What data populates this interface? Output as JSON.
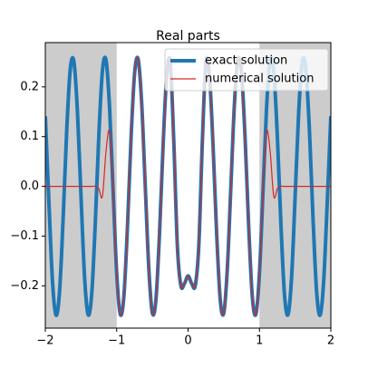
{
  "chart_data": {
    "type": "line",
    "title": "Real parts",
    "x": [
      -2,
      -1.95,
      -1.9,
      -1.85,
      -1.8,
      -1.75,
      -1.7,
      -1.65,
      -1.6,
      -1.55,
      -1.5,
      -1.45,
      -1.4,
      -1.35,
      -1.3,
      -1.25,
      -1.2,
      -1.15,
      -1.1,
      -1.05,
      -1,
      -0.95,
      -0.9,
      -0.85,
      -0.8,
      -0.75,
      -0.7,
      -0.65,
      -0.6,
      -0.55,
      -0.5,
      -0.45,
      -0.4,
      -0.35,
      -0.3,
      -0.25,
      -0.2,
      -0.15,
      -0.1,
      -0.05,
      0,
      0.05,
      0.1,
      0.15,
      0.2,
      0.25,
      0.3,
      0.35,
      0.4,
      0.45,
      0.5,
      0.55,
      0.6,
      0.65,
      0.7,
      0.75,
      0.8,
      0.85,
      0.9,
      0.95,
      1,
      1.05,
      1.1,
      1.15,
      1.2,
      1.25,
      1.3,
      1.35,
      1.4,
      1.45,
      1.5,
      1.55,
      1.6,
      1.65,
      1.7,
      1.75,
      1.8,
      1.85,
      1.9,
      1.95,
      2
    ],
    "series": [
      {
        "name": "exact solution",
        "color": "#1f77b4",
        "width": 4,
        "values": [
          0.141,
          -0.031,
          -0.19,
          -0.259,
          -0.21,
          -0.063,
          0.113,
          0.236,
          0.251,
          0.15,
          -0.02,
          -0.183,
          -0.258,
          -0.216,
          -0.074,
          0.103,
          0.232,
          0.254,
          0.159,
          -0.01,
          -0.174,
          -0.257,
          -0.222,
          -0.084,
          0.093,
          0.226,
          0.256,
          0.167,
          0.001,
          -0.165,
          -0.255,
          -0.227,
          -0.094,
          0.082,
          0.221,
          0.25,
          0.09,
          -0.12,
          -0.2,
          -0.195,
          -0.18,
          -0.195,
          -0.2,
          -0.12,
          0.09,
          0.25,
          0.221,
          0.082,
          -0.094,
          -0.227,
          -0.255,
          -0.165,
          0.001,
          0.167,
          0.256,
          0.226,
          0.093,
          -0.084,
          -0.222,
          -0.257,
          -0.174,
          -0.01,
          0.159,
          0.254,
          0.232,
          0.103,
          -0.074,
          -0.216,
          -0.258,
          -0.183,
          -0.02,
          0.15,
          0.251,
          0.236,
          0.113,
          -0.063,
          -0.21,
          -0.259,
          -0.19,
          -0.031,
          0.141
        ]
      },
      {
        "name": "numerical solution",
        "color": "#d62728",
        "width": 1.2,
        "values": [
          0,
          0,
          0,
          0,
          0,
          0,
          0,
          0,
          0,
          0,
          0,
          0,
          0,
          0,
          0,
          -0.005,
          -0.02,
          0.07,
          0.11,
          -0.01,
          -0.174,
          -0.257,
          -0.222,
          -0.084,
          0.093,
          0.226,
          0.256,
          0.167,
          0.001,
          -0.165,
          -0.255,
          -0.227,
          -0.094,
          0.082,
          0.221,
          0.25,
          0.09,
          -0.12,
          -0.2,
          -0.195,
          -0.18,
          -0.195,
          -0.2,
          -0.12,
          0.09,
          0.25,
          0.221,
          0.082,
          -0.094,
          -0.227,
          -0.255,
          -0.165,
          0.001,
          0.167,
          0.256,
          0.226,
          0.093,
          -0.084,
          -0.222,
          -0.257,
          -0.174,
          -0.01,
          0.11,
          0.07,
          -0.02,
          -0.005,
          0,
          0,
          0,
          0,
          0,
          0,
          0,
          0,
          0,
          0,
          0,
          0,
          0,
          0,
          0
        ]
      }
    ],
    "shaded_regions": [
      [
        -2,
        -1
      ],
      [
        1,
        2
      ]
    ],
    "shade_color": "#cccccc",
    "xlim": [
      -2,
      2
    ],
    "ylim": [
      -0.285,
      0.289
    ],
    "xticks": [
      {
        "value": -2,
        "label": "−2"
      },
      {
        "value": -1,
        "label": "−1"
      },
      0,
      1,
      2
    ],
    "yticks": [
      {
        "value": -0.2,
        "label": "−0.2"
      },
      {
        "value": -0.1,
        "label": "−0.1"
      },
      {
        "value": 0,
        "label": "0.0"
      },
      0.1,
      0.2
    ],
    "legend": "upper right"
  }
}
